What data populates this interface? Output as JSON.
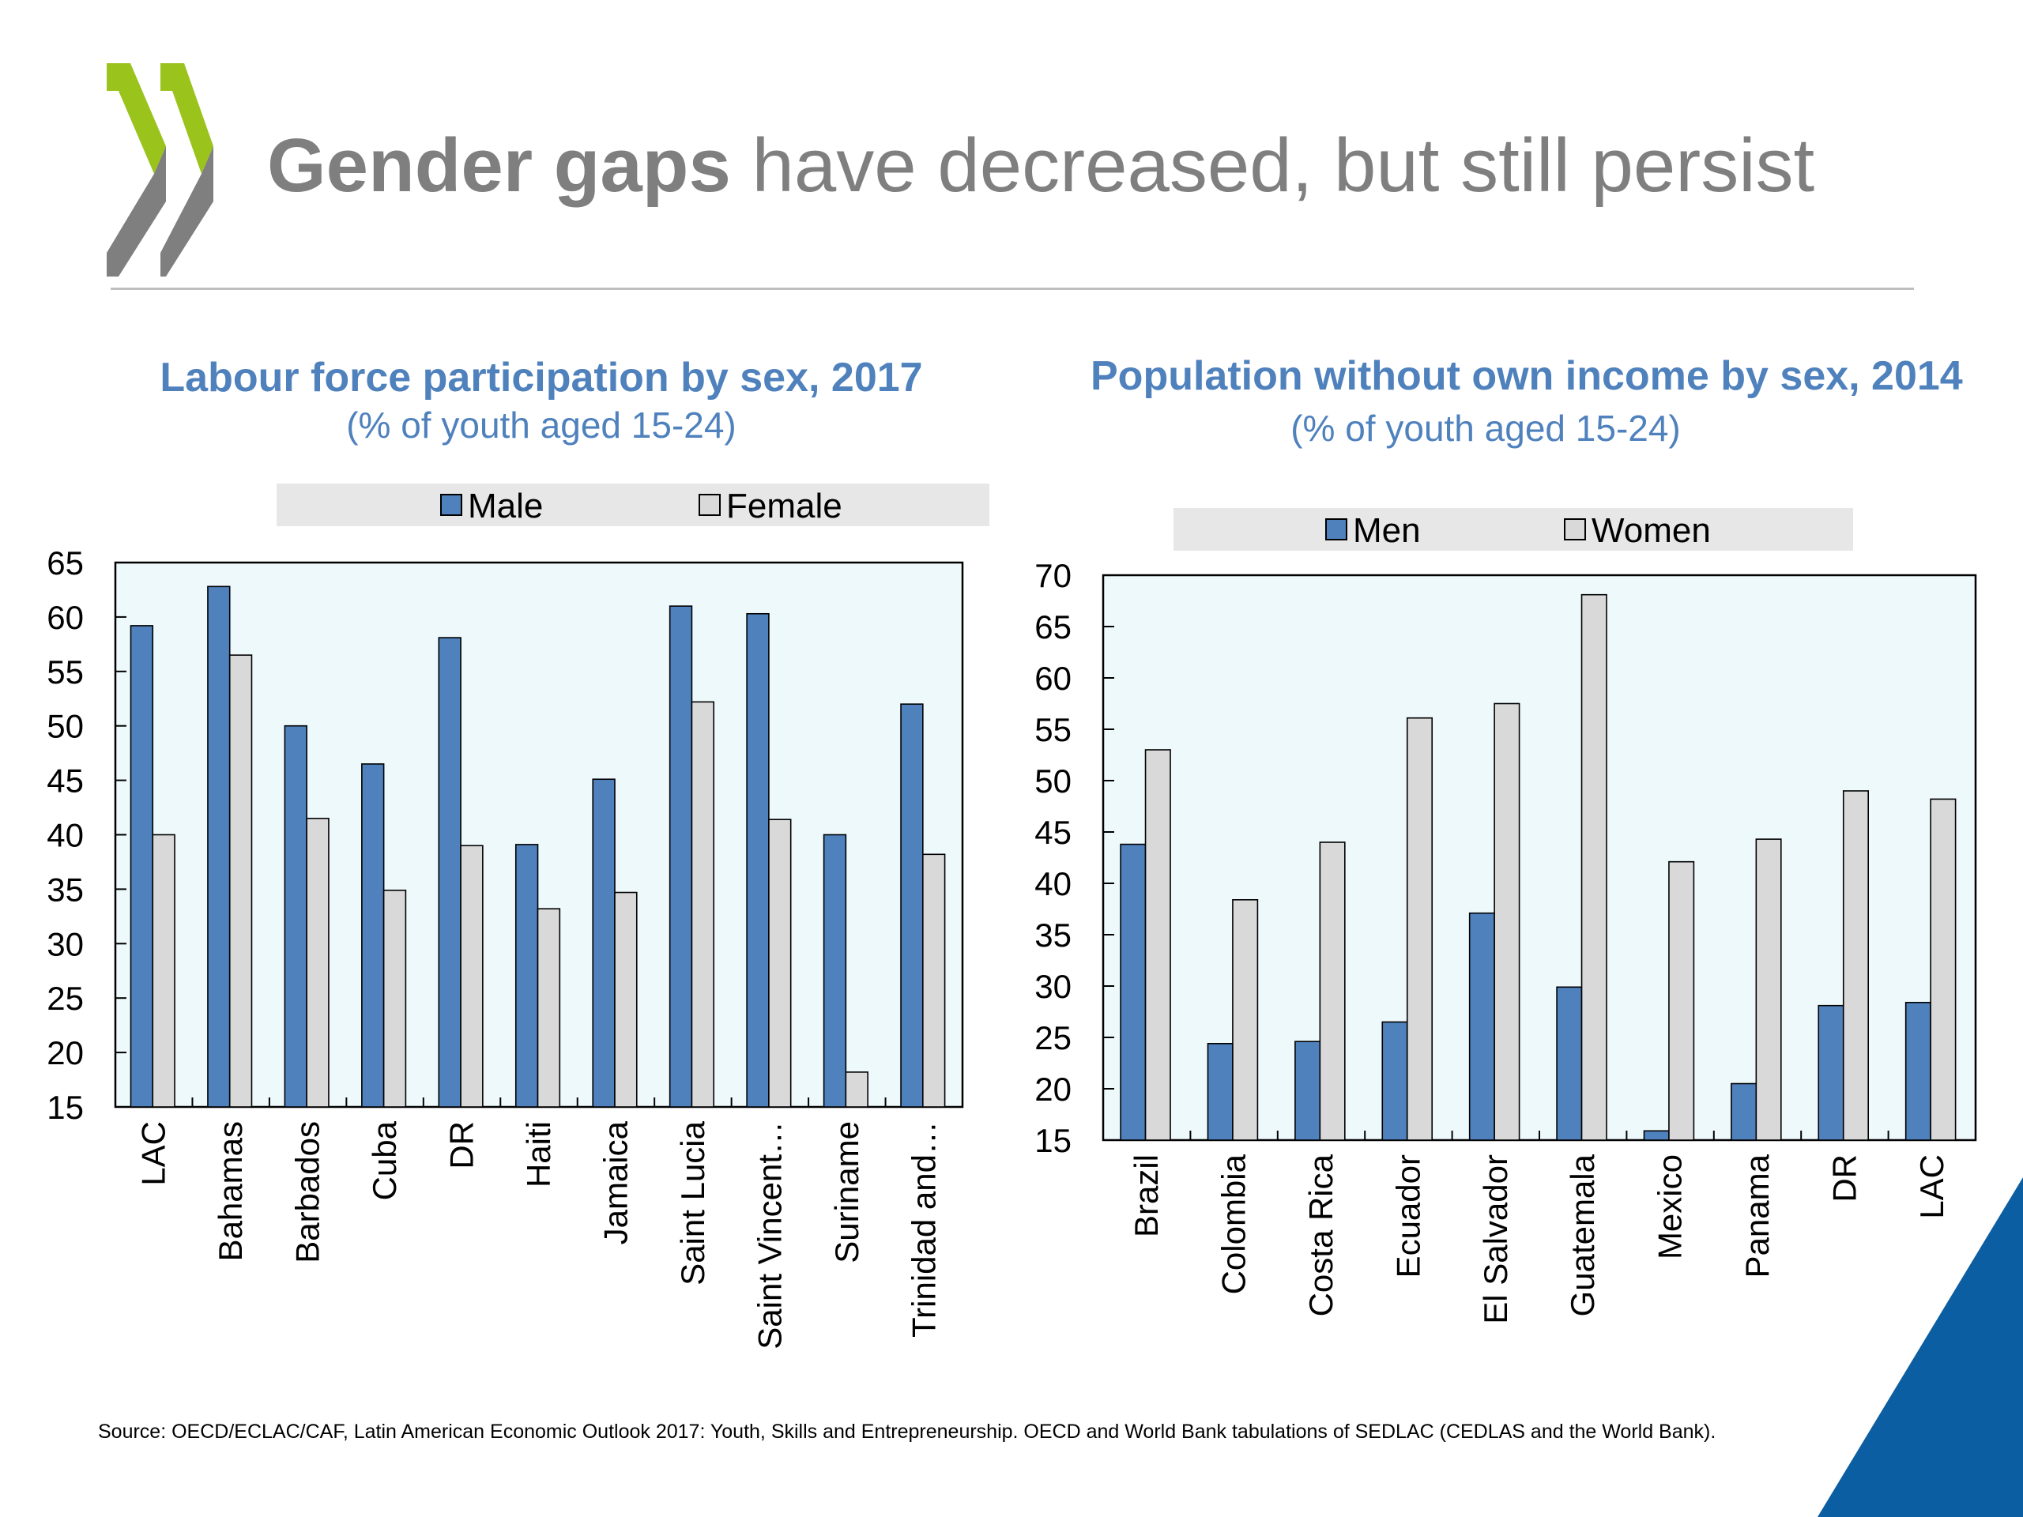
{
  "page": {
    "title_bold": "Gender gaps",
    "title_rest": "have decreased, but still persist",
    "source": "Source: OECD/ECLAC/CAF, Latin American Economic Outlook 2017: Youth, Skills and Entrepreneurship. OECD and World Bank tabulations of SEDLAC (CEDLAS and the World Bank).",
    "colors": {
      "logo_green": "#9ac31c",
      "logo_gray": "#7f7f7f",
      "corner_blue": "#0b5ea1",
      "title_gray": "#7f7f7f",
      "accent_blue": "#4f81bd"
    }
  },
  "chart_data": [
    {
      "type": "bar",
      "title": "Labour force participation by sex, 2017",
      "subtitle": "(% of youth aged 15-24)",
      "categories": [
        "LAC",
        "Bahamas",
        "Barbados",
        "Cuba",
        "DR",
        "Haiti",
        "Jamaica",
        "Saint Lucia",
        "Saint Vincent…",
        "Suriname",
        "Trinidad and…"
      ],
      "series": [
        {
          "name": "Male",
          "color": "#4f81bd",
          "values": [
            59.2,
            62.8,
            50.0,
            46.5,
            58.1,
            39.1,
            45.1,
            61.0,
            60.3,
            40.0,
            52.0
          ]
        },
        {
          "name": "Female",
          "color": "#d9d9d9",
          "values": [
            40.0,
            56.5,
            41.5,
            34.9,
            39.0,
            33.2,
            34.7,
            52.2,
            41.4,
            18.2,
            38.2
          ]
        }
      ],
      "ylim": [
        15,
        65
      ],
      "yticks": [
        15,
        20,
        25,
        30,
        35,
        40,
        45,
        50,
        55,
        60,
        65
      ],
      "legend_position": "top",
      "plot_background": "#eef9fc",
      "grid": false
    },
    {
      "type": "bar",
      "title": "Population without own income by sex, 2014",
      "subtitle": "(% of youth aged 15-24)",
      "categories": [
        "Brazil",
        "Colombia",
        "Costa Rica",
        "Ecuador",
        "El Salvador",
        "Guatemala",
        "Mexico",
        "Panama",
        "DR",
        "LAC"
      ],
      "series": [
        {
          "name": "Men",
          "color": "#4f81bd",
          "values": [
            43.8,
            24.4,
            24.6,
            26.5,
            37.1,
            29.9,
            15.9,
            20.5,
            28.1,
            28.4
          ]
        },
        {
          "name": "Women",
          "color": "#d9d9d9",
          "values": [
            53.0,
            38.4,
            44.0,
            56.1,
            57.5,
            68.1,
            42.1,
            44.3,
            49.0,
            48.2
          ]
        }
      ],
      "ylim": [
        15,
        70
      ],
      "yticks": [
        15,
        20,
        25,
        30,
        35,
        40,
        45,
        50,
        55,
        60,
        65,
        70
      ],
      "legend_position": "top",
      "plot_background": "#eef9fc",
      "grid": false
    }
  ]
}
